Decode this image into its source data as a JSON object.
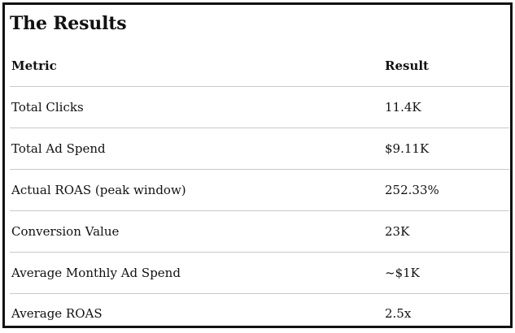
{
  "section": {
    "title": "The Results"
  },
  "table": {
    "headers": [
      "Metric",
      "Result"
    ],
    "rows": [
      [
        "Total Clicks",
        "11.4K"
      ],
      [
        "Total Ad Spend",
        "$9.11K"
      ],
      [
        "Actual ROAS (peak window)",
        "252.33%"
      ],
      [
        "Conversion Value",
        "23K"
      ],
      [
        "Average Monthly Ad Spend",
        "~$1K"
      ],
      [
        "Average ROAS",
        "2.5x"
      ]
    ]
  },
  "colors": {
    "text": "#111111",
    "border": "#111111",
    "row_divider": "#c9c9c9",
    "background": "#ffffff"
  }
}
